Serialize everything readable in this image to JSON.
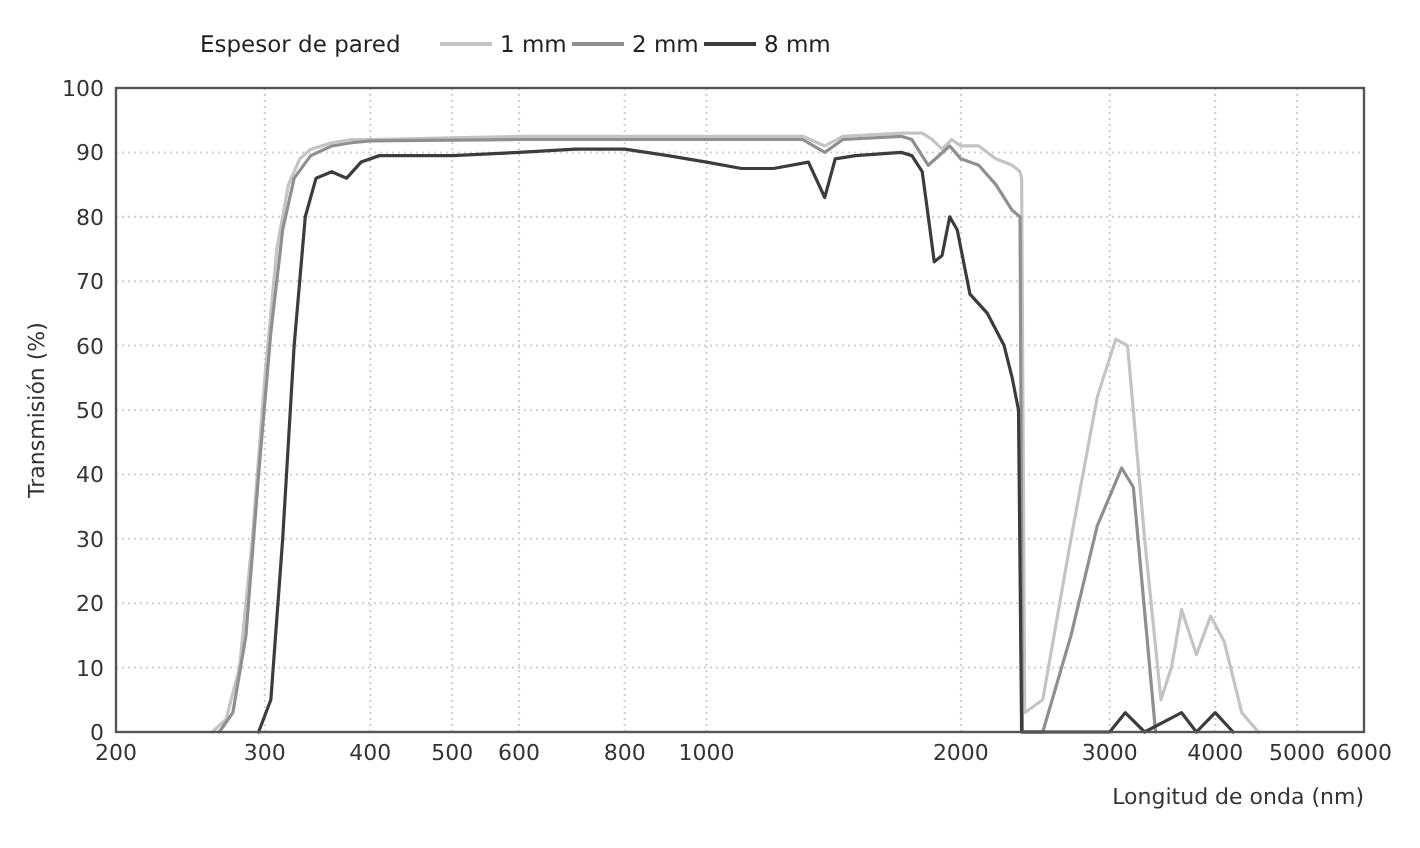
{
  "chart_data": {
    "type": "line",
    "xlabel": "Longitud de onda (nm)",
    "ylabel": "Transmisión (%)",
    "legend_title": "Espesor de pared",
    "legend": "top left",
    "grid": true,
    "log": "x",
    "line_style": "solid",
    "xlim": [
      200,
      6000
    ],
    "xticks": [
      200,
      300,
      400,
      500,
      600,
      800,
      1000,
      2000,
      3000,
      4000,
      5000,
      6000
    ],
    "ylim": [
      0,
      100
    ],
    "yticks": [
      0,
      10,
      20,
      30,
      40,
      50,
      60,
      70,
      80,
      90,
      100
    ],
    "series": [
      {
        "name": "1 mm",
        "color": "#c4c4c4",
        "x": [
          260,
          270,
          280,
          290,
          300,
          310,
          320,
          330,
          340,
          350,
          360,
          380,
          400,
          600,
          1000,
          1300,
          1380,
          1450,
          1700,
          1800,
          1850,
          1900,
          1950,
          2000,
          2100,
          2200,
          2300,
          2350,
          2360,
          2380,
          2500,
          2700,
          2900,
          3050,
          3150,
          3300,
          3450,
          3550,
          3650,
          3800,
          3950,
          4100,
          4300,
          4500
        ],
        "values": [
          0,
          2,
          10,
          30,
          55,
          75,
          85,
          89,
          90.5,
          91,
          91.5,
          92,
          92,
          92.5,
          92.5,
          92.5,
          91,
          92.5,
          93,
          93,
          92,
          90.5,
          92,
          91,
          91,
          89,
          88,
          87,
          86,
          3,
          5,
          30,
          52,
          61,
          60,
          30,
          5,
          10,
          19,
          12,
          18,
          14,
          3,
          0
        ]
      },
      {
        "name": "2 mm",
        "color": "#8f8f8f",
        "x": [
          265,
          275,
          285,
          295,
          305,
          315,
          325,
          340,
          360,
          380,
          400,
          600,
          1000,
          1300,
          1380,
          1450,
          1700,
          1750,
          1830,
          1940,
          2000,
          2100,
          2200,
          2300,
          2350,
          2365,
          2500,
          2700,
          2900,
          3100,
          3200,
          3400
        ],
        "values": [
          0,
          3,
          15,
          40,
          62,
          78,
          86,
          89.5,
          91,
          91.5,
          91.8,
          92,
          92,
          92,
          90,
          92,
          92.5,
          92,
          88,
          91,
          89,
          88,
          85,
          81,
          80,
          0,
          0,
          15,
          32,
          41,
          38,
          0
        ]
      },
      {
        "name": "8 mm",
        "color": "#3c3c3c",
        "x": [
          295,
          305,
          315,
          325,
          335,
          345,
          360,
          375,
          390,
          410,
          500,
          600,
          700,
          800,
          900,
          1000,
          1100,
          1200,
          1320,
          1380,
          1420,
          1500,
          1700,
          1750,
          1800,
          1830,
          1860,
          1900,
          1940,
          1980,
          2050,
          2150,
          2250,
          2300,
          2340,
          2360,
          3000,
          3130,
          3300,
          3650,
          3800,
          4000,
          4200
        ],
        "values": [
          0,
          5,
          30,
          60,
          80,
          86,
          87,
          86,
          88.5,
          89.5,
          89.5,
          90,
          90.5,
          90.5,
          89.5,
          88.5,
          87.5,
          87.5,
          88.5,
          83,
          89,
          89.5,
          90,
          89.5,
          87,
          80,
          73,
          74,
          80,
          78,
          68,
          65,
          60,
          55,
          50,
          0,
          0,
          3,
          0,
          3,
          0,
          3,
          0
        ]
      }
    ]
  }
}
